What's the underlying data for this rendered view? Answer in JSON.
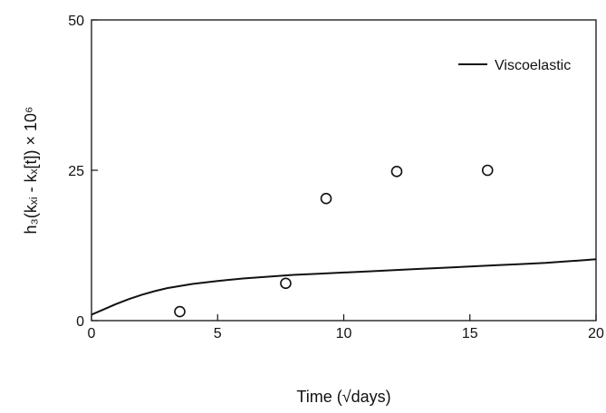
{
  "chart_data": {
    "type": "scatter",
    "xlabel": "Time (√days)",
    "ylabel": "h₃(kₓᵢ - kₓ[t]) × 10⁶",
    "xlim": [
      0,
      20
    ],
    "ylim": [
      0,
      50
    ],
    "x_ticks": [
      0,
      5,
      10,
      15,
      20
    ],
    "y_ticks": [
      0,
      25,
      50
    ],
    "grid": false,
    "legend_position": "top-right",
    "series": [
      {
        "name": "Viscoelastic",
        "kind": "line",
        "x": [
          0,
          0.5,
          1,
          1.5,
          2,
          2.5,
          3,
          4,
          5,
          6,
          7,
          8,
          9,
          10,
          11,
          12,
          13,
          14,
          15,
          16,
          17,
          18,
          19,
          20
        ],
        "y": [
          1.0,
          1.9,
          2.8,
          3.6,
          4.3,
          4.9,
          5.4,
          6.1,
          6.6,
          7.0,
          7.3,
          7.6,
          7.8,
          8.0,
          8.2,
          8.4,
          8.6,
          8.8,
          9.0,
          9.2,
          9.4,
          9.6,
          9.9,
          10.2
        ]
      },
      {
        "kind": "scatter",
        "marker": "open-circle",
        "x": [
          3.5,
          7.7,
          9.3,
          12.1,
          15.7
        ],
        "y": [
          1.5,
          6.2,
          20.3,
          24.8,
          25.0
        ]
      }
    ]
  }
}
